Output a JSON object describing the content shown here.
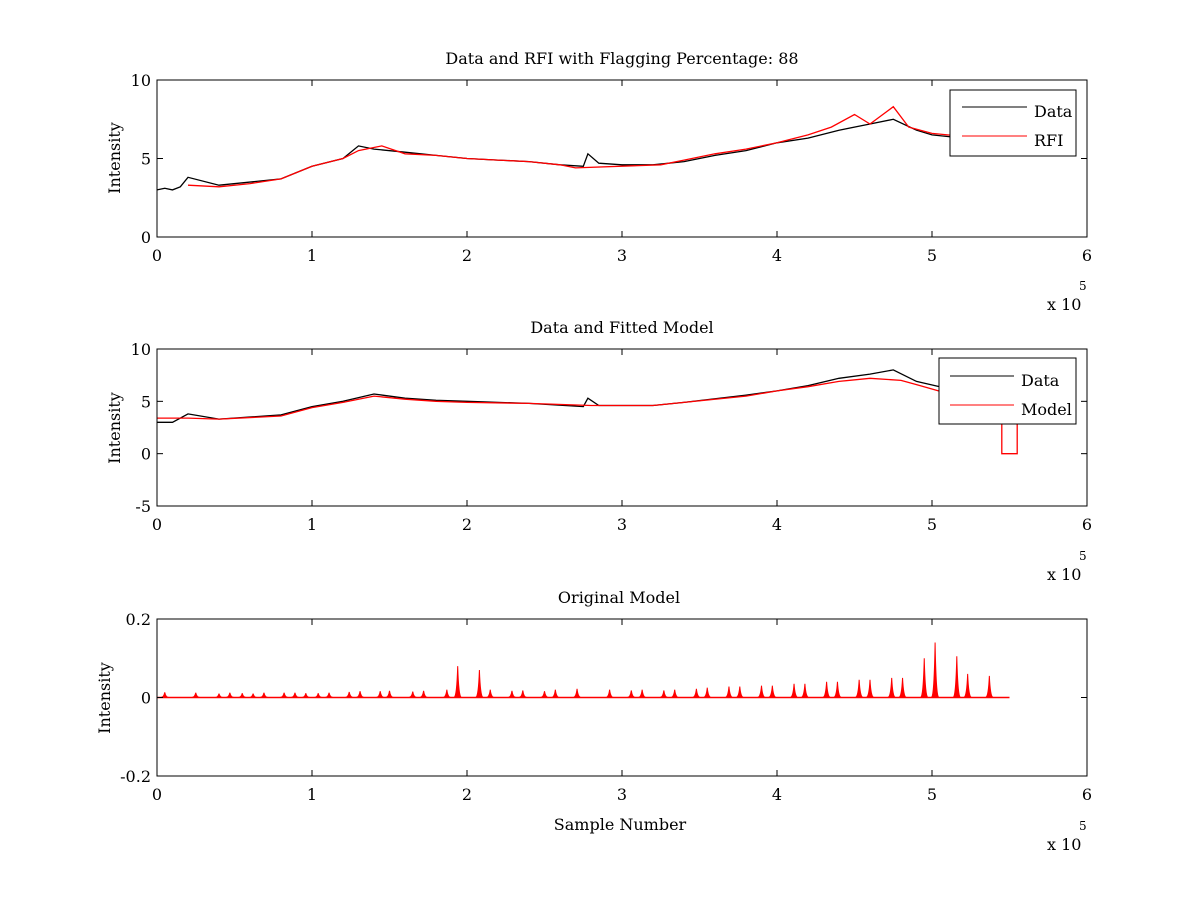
{
  "figure": {
    "background": "#ffffff",
    "data_color": "#000000",
    "rfi_color": "#ff0000"
  },
  "chart_data": [
    {
      "type": "line",
      "title": "Data and RFI with Flagging Percentage: 88",
      "xlabel": "",
      "ylabel": "Intensity",
      "xlim": [
        0,
        6
      ],
      "ylim": [
        0,
        10
      ],
      "xticks": [
        "0",
        "1",
        "2",
        "3",
        "4",
        "5",
        "6"
      ],
      "yticks": [
        "0",
        "5",
        "10"
      ],
      "x_exponent": {
        "base": "x 10",
        "power": "5"
      },
      "legend": {
        "position": "top-right",
        "entries": [
          "Data",
          "RFI"
        ]
      },
      "series": [
        {
          "name": "Data",
          "color": "#000000",
          "x": [
            0,
            0.05,
            0.1,
            0.15,
            0.2,
            0.4,
            0.8,
            1.0,
            1.2,
            1.3,
            1.4,
            1.6,
            1.8,
            2.0,
            2.2,
            2.4,
            2.6,
            2.75,
            2.78,
            2.85,
            3.0,
            3.2,
            3.4,
            3.6,
            3.8,
            4.0,
            4.2,
            4.4,
            4.6,
            4.75,
            4.9,
            5.0,
            5.1,
            5.2
          ],
          "y": [
            3.0,
            3.1,
            3.0,
            3.2,
            3.8,
            3.3,
            3.7,
            4.5,
            5.0,
            5.8,
            5.6,
            5.4,
            5.2,
            5.0,
            4.9,
            4.8,
            4.6,
            4.5,
            5.3,
            4.7,
            4.6,
            4.6,
            4.8,
            5.2,
            5.5,
            6.0,
            6.3,
            6.8,
            7.2,
            7.5,
            6.8,
            6.5,
            6.4,
            6.3
          ]
        },
        {
          "name": "RFI",
          "color": "#ff0000",
          "x": [
            0.2,
            0.4,
            0.6,
            0.8,
            1.0,
            1.2,
            1.3,
            1.45,
            1.6,
            1.8,
            2.0,
            2.2,
            2.4,
            2.6,
            2.7,
            3.25,
            3.4,
            3.6,
            3.8,
            4.0,
            4.2,
            4.35,
            4.5,
            4.6,
            4.75,
            4.85,
            5.0,
            5.1,
            5.2
          ],
          "y": [
            3.3,
            3.2,
            3.4,
            3.7,
            4.5,
            5.0,
            5.5,
            5.8,
            5.3,
            5.2,
            5.0,
            4.9,
            4.8,
            4.6,
            4.4,
            4.6,
            4.9,
            5.3,
            5.6,
            6.0,
            6.5,
            7.0,
            7.8,
            7.2,
            8.3,
            7.0,
            6.6,
            6.5,
            6.4
          ]
        }
      ]
    },
    {
      "type": "line",
      "title": "Data and Fitted Model",
      "xlabel": "",
      "ylabel": "Intensity",
      "xlim": [
        0,
        6
      ],
      "ylim": [
        -5,
        10
      ],
      "xticks": [
        "0",
        "1",
        "2",
        "3",
        "4",
        "5",
        "6"
      ],
      "yticks": [
        "-5",
        "0",
        "5",
        "10"
      ],
      "x_exponent": {
        "base": "x 10",
        "power": "5"
      },
      "legend": {
        "position": "top-right",
        "entries": [
          "Data",
          "Model"
        ]
      },
      "series": [
        {
          "name": "Data",
          "color": "#000000",
          "x": [
            0,
            0.1,
            0.2,
            0.4,
            0.8,
            1.0,
            1.2,
            1.4,
            1.6,
            1.8,
            2.0,
            2.4,
            2.75,
            2.78,
            2.85,
            3.2,
            3.4,
            3.8,
            4.0,
            4.2,
            4.4,
            4.6,
            4.75,
            4.9,
            5.05
          ],
          "y": [
            3.0,
            3.0,
            3.8,
            3.3,
            3.7,
            4.5,
            5.0,
            5.7,
            5.3,
            5.1,
            5.0,
            4.8,
            4.5,
            5.3,
            4.6,
            4.6,
            4.9,
            5.6,
            6.0,
            6.5,
            7.2,
            7.6,
            8.0,
            6.9,
            6.4
          ]
        },
        {
          "name": "Model",
          "color": "#ff0000",
          "x": [
            0,
            0.2,
            0.4,
            0.8,
            1.0,
            1.2,
            1.4,
            1.6,
            1.8,
            2.0,
            2.4,
            2.8,
            3.2,
            3.4,
            3.8,
            4.0,
            4.2,
            4.4,
            4.6,
            4.8,
            4.9,
            5.4,
            5.45,
            5.45,
            5.55,
            5.55
          ],
          "y": [
            3.4,
            3.4,
            3.3,
            3.6,
            4.4,
            4.9,
            5.5,
            5.2,
            5.0,
            4.9,
            4.8,
            4.6,
            4.6,
            4.9,
            5.5,
            6.0,
            6.4,
            6.9,
            7.2,
            7.0,
            6.6,
            4.5,
            4.5,
            0,
            0,
            4.5
          ]
        }
      ]
    },
    {
      "type": "line",
      "title": "Original Model",
      "xlabel": "Sample Number",
      "ylabel": "Intensity",
      "xlim": [
        0,
        6
      ],
      "ylim": [
        -0.2,
        0.2
      ],
      "xticks": [
        "0",
        "1",
        "2",
        "3",
        "4",
        "5",
        "6"
      ],
      "yticks": [
        "-0.2",
        "0",
        "0.2"
      ],
      "x_exponent": {
        "base": "x 10",
        "power": "5"
      },
      "series": [
        {
          "color": "#ff0000",
          "baseline": 0,
          "x_end": 5.5,
          "spikes_x": [
            0.05,
            0.25,
            0.4,
            0.47,
            0.55,
            0.62,
            0.69,
            0.82,
            0.89,
            0.96,
            1.04,
            1.11,
            1.24,
            1.31,
            1.44,
            1.5,
            1.65,
            1.72,
            1.87,
            1.94,
            2.08,
            2.15,
            2.29,
            2.36,
            2.5,
            2.57,
            2.71,
            2.92,
            3.06,
            3.13,
            3.27,
            3.34,
            3.48,
            3.55,
            3.69,
            3.76,
            3.9,
            3.97,
            4.11,
            4.18,
            4.32,
            4.39,
            4.53,
            4.6,
            4.74,
            4.81,
            4.95,
            5.02,
            5.16,
            5.23,
            5.37
          ],
          "spikes_y": [
            0.013,
            0.012,
            0.01,
            0.012,
            0.011,
            0.01,
            0.012,
            0.012,
            0.012,
            0.011,
            0.011,
            0.012,
            0.014,
            0.016,
            0.016,
            0.017,
            0.015,
            0.017,
            0.02,
            0.08,
            0.07,
            0.02,
            0.017,
            0.018,
            0.016,
            0.02,
            0.022,
            0.02,
            0.018,
            0.02,
            0.018,
            0.02,
            0.022,
            0.025,
            0.028,
            0.028,
            0.03,
            0.03,
            0.035,
            0.035,
            0.04,
            0.04,
            0.045,
            0.045,
            0.05,
            0.05,
            0.1,
            0.14,
            0.105,
            0.06,
            0.055
          ]
        }
      ]
    }
  ]
}
